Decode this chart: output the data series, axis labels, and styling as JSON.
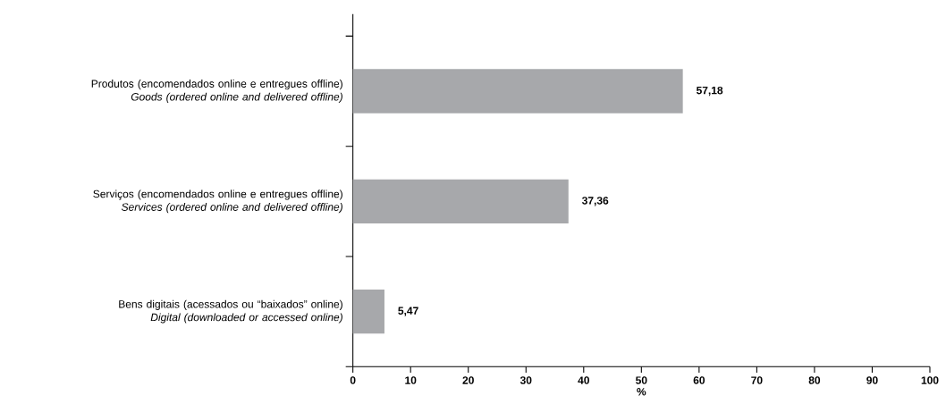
{
  "chart_data": {
    "type": "bar",
    "orientation": "horizontal",
    "categories": [
      "Produtos (encomendados online e entregues offline)\n*Goods (ordered online and delivered offline)*",
      "Serviços (encomendados online e entregues offline)\n*Services (ordered online and delivered offline)*",
      "Bens digitais (acessados ou “baixados” online)\n*Digital (downloaded or accessed online)*"
    ],
    "values": [
      57.18,
      37.36,
      5.47
    ],
    "value_labels": [
      "57,18",
      "37,36",
      "5,47"
    ],
    "color": "#a7a8ab",
    "xlabel": "%",
    "xlim": [
      0,
      100
    ],
    "xticks": [
      0,
      10,
      20,
      30,
      40,
      50,
      60,
      70,
      80,
      90,
      100
    ]
  }
}
